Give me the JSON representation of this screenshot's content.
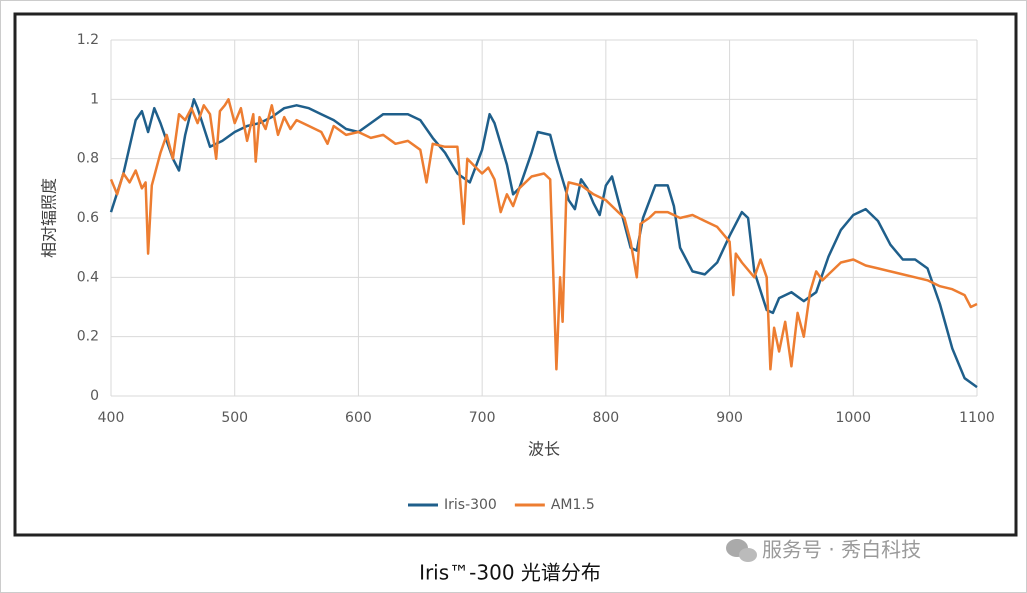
{
  "chart_data": {
    "type": "line",
    "ylabel": "相对辐照度",
    "xlabel": "波长",
    "caption": "Iris™-300 光谱分布",
    "watermark": "服务号 · 秀白科技",
    "xlim": [
      400,
      1100
    ],
    "xticks": [
      400,
      500,
      600,
      700,
      800,
      900,
      1000,
      1100
    ],
    "ylim": [
      0,
      1.2
    ],
    "yticks": [
      0,
      0.2,
      0.4,
      0.6,
      0.8,
      1,
      1.2
    ],
    "grid": true,
    "legend": "bottom",
    "series": [
      {
        "name": "Iris-300",
        "color": "#1f5f8b",
        "x": [
          400,
          410,
          420,
          425,
          430,
          435,
          440,
          450,
          455,
          460,
          467,
          470,
          480,
          490,
          500,
          510,
          520,
          530,
          540,
          550,
          560,
          570,
          580,
          590,
          600,
          610,
          620,
          630,
          640,
          650,
          660,
          670,
          680,
          690,
          700,
          706,
          710,
          720,
          725,
          730,
          740,
          745,
          755,
          760,
          770,
          775,
          780,
          785,
          790,
          795,
          800,
          805,
          810,
          820,
          825,
          830,
          840,
          850,
          855,
          860,
          870,
          880,
          890,
          900,
          910,
          915,
          920,
          930,
          935,
          940,
          950,
          960,
          970,
          980,
          990,
          1000,
          1010,
          1020,
          1030,
          1040,
          1050,
          1060,
          1070,
          1080,
          1090,
          1100
        ],
        "values": [
          0.62,
          0.75,
          0.93,
          0.96,
          0.89,
          0.97,
          0.92,
          0.8,
          0.76,
          0.88,
          1.0,
          0.97,
          0.84,
          0.86,
          0.89,
          0.91,
          0.92,
          0.94,
          0.97,
          0.98,
          0.97,
          0.95,
          0.93,
          0.9,
          0.89,
          0.92,
          0.95,
          0.95,
          0.95,
          0.93,
          0.87,
          0.82,
          0.75,
          0.72,
          0.83,
          0.95,
          0.92,
          0.78,
          0.68,
          0.7,
          0.82,
          0.89,
          0.88,
          0.8,
          0.66,
          0.63,
          0.73,
          0.7,
          0.65,
          0.61,
          0.71,
          0.74,
          0.66,
          0.5,
          0.49,
          0.6,
          0.71,
          0.71,
          0.64,
          0.5,
          0.42,
          0.41,
          0.45,
          0.54,
          0.62,
          0.6,
          0.42,
          0.29,
          0.28,
          0.33,
          0.35,
          0.32,
          0.35,
          0.47,
          0.56,
          0.61,
          0.63,
          0.59,
          0.51,
          0.46,
          0.46,
          0.43,
          0.31,
          0.16,
          0.06,
          0.03
        ]
      },
      {
        "name": "AM1.5",
        "color": "#ed7d31",
        "x": [
          400,
          405,
          410,
          415,
          420,
          425,
          428,
          430,
          433,
          440,
          445,
          450,
          455,
          460,
          465,
          470,
          475,
          480,
          485,
          488,
          492,
          495,
          500,
          505,
          510,
          515,
          517,
          520,
          525,
          530,
          535,
          540,
          545,
          550,
          560,
          570,
          575,
          580,
          590,
          600,
          610,
          620,
          630,
          640,
          650,
          655,
          660,
          670,
          680,
          685,
          688,
          695,
          700,
          705,
          710,
          715,
          720,
          725,
          730,
          740,
          750,
          755,
          760,
          763,
          765,
          768,
          770,
          780,
          790,
          800,
          810,
          815,
          820,
          825,
          828,
          835,
          840,
          850,
          860,
          870,
          880,
          890,
          900,
          903,
          905,
          910,
          920,
          925,
          930,
          933,
          936,
          940,
          945,
          950,
          955,
          960,
          965,
          970,
          975,
          980,
          990,
          1000,
          1010,
          1020,
          1030,
          1040,
          1050,
          1060,
          1070,
          1080,
          1090,
          1095,
          1100
        ],
        "values": [
          0.73,
          0.68,
          0.75,
          0.72,
          0.76,
          0.7,
          0.72,
          0.48,
          0.71,
          0.82,
          0.88,
          0.8,
          0.95,
          0.93,
          0.97,
          0.92,
          0.98,
          0.95,
          0.8,
          0.96,
          0.98,
          1.0,
          0.92,
          0.97,
          0.86,
          0.95,
          0.79,
          0.94,
          0.9,
          0.98,
          0.88,
          0.94,
          0.9,
          0.93,
          0.91,
          0.89,
          0.85,
          0.91,
          0.88,
          0.89,
          0.87,
          0.88,
          0.85,
          0.86,
          0.83,
          0.72,
          0.85,
          0.84,
          0.84,
          0.58,
          0.8,
          0.77,
          0.75,
          0.77,
          0.73,
          0.62,
          0.68,
          0.64,
          0.7,
          0.74,
          0.75,
          0.73,
          0.09,
          0.4,
          0.25,
          0.68,
          0.72,
          0.71,
          0.68,
          0.66,
          0.62,
          0.6,
          0.52,
          0.4,
          0.58,
          0.6,
          0.62,
          0.62,
          0.6,
          0.61,
          0.59,
          0.57,
          0.52,
          0.34,
          0.48,
          0.45,
          0.4,
          0.46,
          0.4,
          0.09,
          0.23,
          0.15,
          0.25,
          0.1,
          0.28,
          0.2,
          0.35,
          0.42,
          0.39,
          0.41,
          0.45,
          0.46,
          0.44,
          0.43,
          0.42,
          0.41,
          0.4,
          0.39,
          0.37,
          0.36,
          0.34,
          0.3,
          0.31
        ]
      }
    ]
  }
}
